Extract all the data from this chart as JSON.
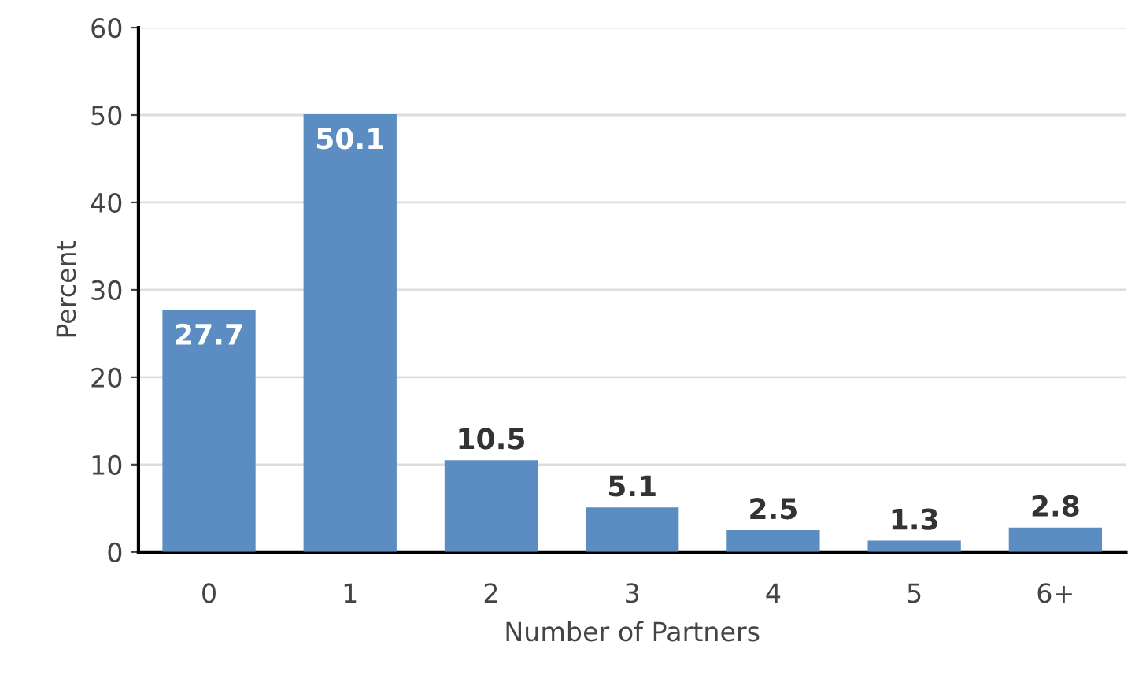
{
  "chart_data": {
    "type": "bar",
    "xlabel": "Number of Partners",
    "ylabel": "Percent",
    "categories": [
      "0",
      "1",
      "2",
      "3",
      "4",
      "5",
      "6+"
    ],
    "values": [
      27.7,
      50.1,
      10.5,
      5.1,
      2.5,
      1.3,
      2.8
    ],
    "color": "#5b8cc2",
    "ylim": [
      0,
      60
    ],
    "yticks": [
      0,
      10,
      20,
      30,
      40,
      50,
      60
    ],
    "grid": "y",
    "data_labels": true
  }
}
